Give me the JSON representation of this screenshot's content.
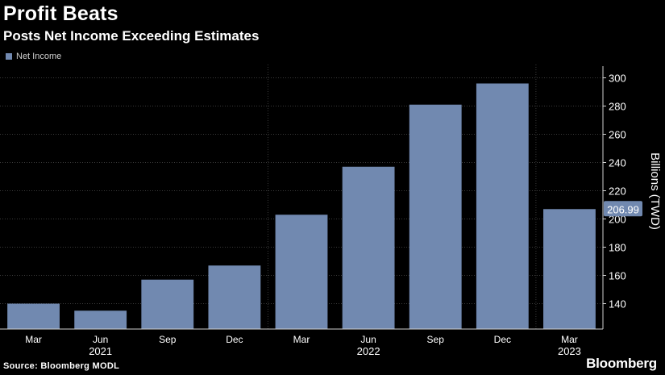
{
  "header": {
    "title": "Profit Beats",
    "subtitle": "Posts Net Income Exceeding Estimates"
  },
  "footer": {
    "source": "Source: Bloomberg MODL",
    "brand": "Bloomberg"
  },
  "colors": {
    "bar": "#7189b0",
    "grid": "#3a3a3a",
    "axis": "#d0d0d0",
    "label_box": "#7189b0"
  },
  "chart_data": {
    "type": "bar",
    "categories": [
      "Mar",
      "Jun",
      "Sep",
      "Dec",
      "Mar",
      "Jun",
      "Sep",
      "Dec",
      "Mar"
    ],
    "year_labels": [
      "2021",
      "2022",
      "2023"
    ],
    "series": [
      {
        "name": "Net Income",
        "values": [
          140,
          135,
          157,
          167,
          203,
          237,
          281,
          296,
          206.99
        ]
      }
    ],
    "ylabel": "Billions (TWD)",
    "ylim": [
      122,
      306
    ],
    "yticks": [
      140,
      160,
      180,
      200,
      220,
      240,
      260,
      280,
      300
    ],
    "last_value_label": "206.99",
    "legend": "top-left",
    "grid": true
  }
}
